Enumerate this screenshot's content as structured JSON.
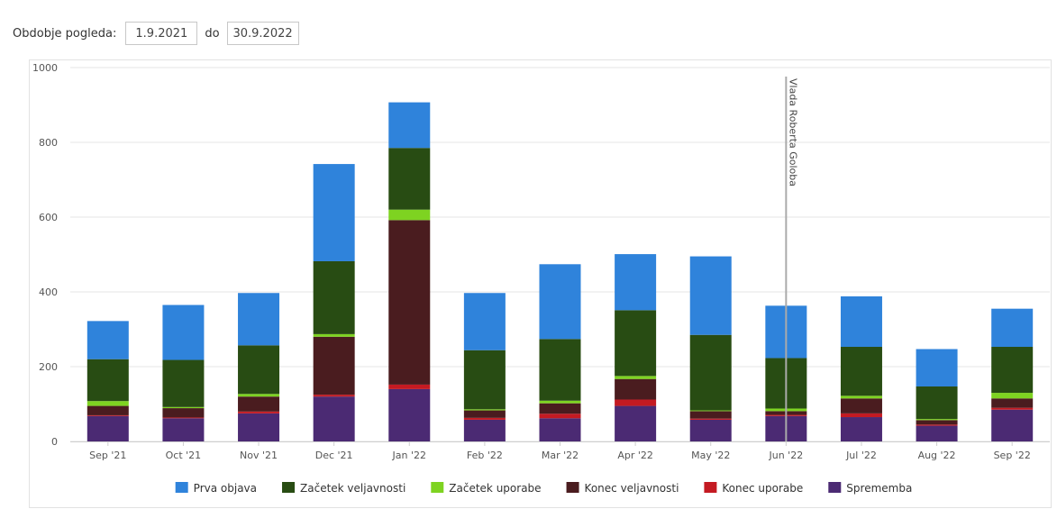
{
  "period": {
    "label": "Obdobje pogleda:",
    "from": "1.9.2021",
    "to_label": "do",
    "to": "30.9.2022"
  },
  "chart_data": {
    "type": "bar",
    "stacked": true,
    "categories": [
      "Sep '21",
      "Oct '21",
      "Nov '21",
      "Dec '21",
      "Jan '22",
      "Feb '22",
      "Mar '22",
      "Apr '22",
      "May '22",
      "Jun '22",
      "Jul '22",
      "Aug '22",
      "Sep '22"
    ],
    "ylim": [
      0,
      1000
    ],
    "yticks": [
      0,
      200,
      400,
      600,
      800,
      1000
    ],
    "grid": true,
    "legend": "bottom",
    "series": [
      {
        "name": "Sprememba",
        "color": "#4b2a73",
        "values": [
          68,
          62,
          75,
          120,
          140,
          58,
          62,
          95,
          58,
          68,
          65,
          42,
          85
        ]
      },
      {
        "name": "Konec uporabe",
        "color": "#c41a22",
        "values": [
          2,
          2,
          5,
          5,
          12,
          5,
          12,
          17,
          3,
          3,
          10,
          3,
          5
        ]
      },
      {
        "name": "Konec veljavnosti",
        "color": "#4a1c1f",
        "values": [
          25,
          25,
          40,
          155,
          440,
          20,
          28,
          55,
          20,
          10,
          40,
          12,
          25
        ]
      },
      {
        "name": "Začetek uporabe",
        "color": "#7ed321",
        "values": [
          13,
          3,
          7,
          7,
          28,
          3,
          7,
          8,
          2,
          7,
          7,
          3,
          15
        ]
      },
      {
        "name": "Začetek veljavnosti",
        "color": "#284c13",
        "values": [
          112,
          126,
          130,
          195,
          165,
          158,
          165,
          176,
          202,
          135,
          131,
          87,
          123
        ]
      },
      {
        "name": "Prva objava",
        "color": "#2f83db",
        "values": [
          102,
          147,
          140,
          260,
          122,
          153,
          200,
          150,
          210,
          140,
          135,
          100,
          102
        ]
      }
    ],
    "annotation": {
      "x": "Jun '22",
      "label": "Vlada Roberta Goloba"
    }
  },
  "legend_order": [
    "Prva objava",
    "Začetek veljavnosti",
    "Začetek uporabe",
    "Konec veljavnosti",
    "Konec uporabe",
    "Sprememba"
  ]
}
